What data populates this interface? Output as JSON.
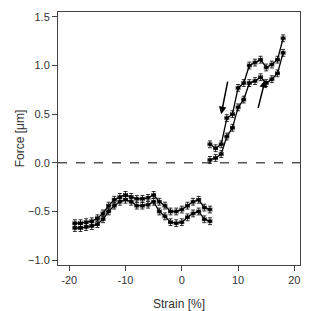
{
  "chart_data": {
    "type": "line",
    "xlabel": "Strain [%]",
    "ylabel": "Force [μm]",
    "xlim": [
      -22,
      21
    ],
    "ylim": [
      -1.05,
      1.55
    ],
    "xticks": [
      -20,
      -10,
      0,
      10,
      20
    ],
    "yticks": [
      {
        "value": -1.0,
        "label": "−1.0"
      },
      {
        "value": -0.5,
        "label": "−0.5"
      },
      {
        "value": 0.0,
        "label": "0.0"
      },
      {
        "value": 0.5,
        "label": "0.5"
      },
      {
        "value": 1.0,
        "label": "1.0"
      },
      {
        "value": 1.5,
        "label": "1.5"
      }
    ],
    "grid": false,
    "series": [
      {
        "color": "#000000",
        "marker": "circle",
        "line_style": "solid",
        "x": [
          -19,
          -18,
          -17,
          -16,
          -15,
          -14,
          -13,
          -12,
          -11,
          -10,
          -9,
          -8,
          -7,
          -6,
          -5,
          -4,
          -3,
          -2,
          -1,
          0,
          1,
          2,
          3,
          4,
          5
        ],
        "values": [
          -0.62,
          -0.62,
          -0.61,
          -0.6,
          -0.57,
          -0.52,
          -0.44,
          -0.38,
          -0.35,
          -0.33,
          -0.35,
          -0.37,
          -0.37,
          -0.36,
          -0.33,
          -0.4,
          -0.44,
          -0.5,
          -0.5,
          -0.48,
          -0.44,
          -0.4,
          -0.38,
          -0.46,
          -0.48
        ],
        "xerr": 0.35,
        "yerr": 0.035
      },
      {
        "color": "#000000",
        "marker": "circle",
        "line_style": "solid",
        "x": [
          -19,
          -18,
          -17,
          -16,
          -15,
          -14,
          -13,
          -12,
          -11,
          -10,
          -9,
          -8,
          -7,
          -6,
          -5,
          -4,
          -3,
          -2,
          -1,
          0,
          1,
          2,
          3,
          4,
          5
        ],
        "values": [
          -0.67,
          -0.67,
          -0.66,
          -0.65,
          -0.63,
          -0.58,
          -0.5,
          -0.44,
          -0.4,
          -0.38,
          -0.4,
          -0.44,
          -0.44,
          -0.43,
          -0.4,
          -0.5,
          -0.55,
          -0.61,
          -0.62,
          -0.61,
          -0.56,
          -0.52,
          -0.5,
          -0.58,
          -0.6
        ],
        "xerr": 0.35,
        "yerr": 0.035
      },
      {
        "color": "#000000",
        "marker": "circle",
        "line_style": "solid",
        "x": [
          5,
          6,
          7,
          8,
          9,
          10,
          11,
          12,
          13,
          14,
          15,
          16,
          17,
          18
        ],
        "values": [
          0.19,
          0.15,
          0.19,
          0.46,
          0.5,
          0.77,
          0.82,
          1.0,
          1.03,
          1.06,
          0.98,
          1.01,
          1.06,
          1.28
        ],
        "xerr": 0.35,
        "yerr": 0.035
      },
      {
        "color": "#000000",
        "marker": "circle",
        "line_style": "solid",
        "x": [
          5,
          6,
          7,
          8,
          9,
          10,
          11,
          12,
          13,
          14,
          15,
          16,
          17,
          18
        ],
        "values": [
          0.03,
          0.05,
          0.09,
          0.27,
          0.36,
          0.57,
          0.65,
          0.82,
          0.84,
          0.88,
          0.82,
          0.86,
          0.92,
          1.13
        ],
        "xerr": 0.35,
        "yerr": 0.035
      }
    ],
    "reference_line": {
      "y": 0.0,
      "color": "#000000",
      "line_style": "dashed"
    },
    "arrows": [
      {
        "x_start": 8.2,
        "y_start": 0.85,
        "x_end": 7.0,
        "y_end": 0.5,
        "color": "#000000"
      },
      {
        "x_start": 13.5,
        "y_start": 0.55,
        "x_end": 14.8,
        "y_end": 0.85,
        "color": "#000000"
      }
    ]
  }
}
